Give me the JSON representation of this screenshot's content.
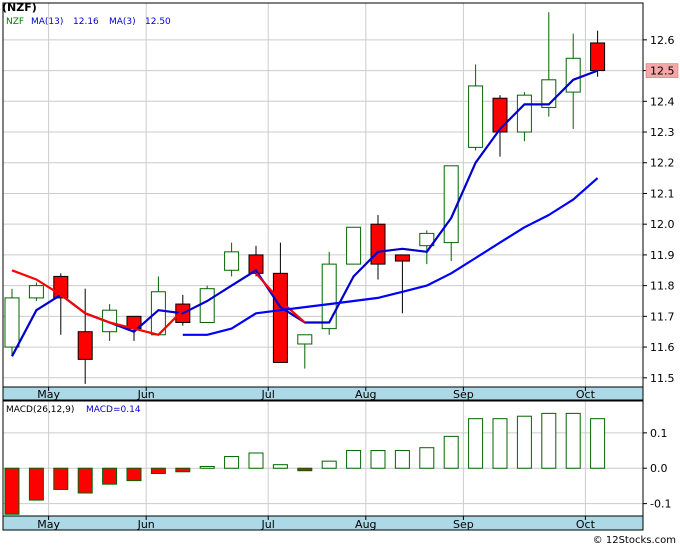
{
  "colors": {
    "background": "#ffffff",
    "frame": "#000000",
    "grid": "#cccccc",
    "axis_band": "#add8e6",
    "up_candle_border": "#006400",
    "down_candle_fill": "#ff0000",
    "ma_fast": "#0000cd",
    "ma_slow": "#ff0000",
    "ma_long": "#0000ff",
    "macd_bar_border": "#006400",
    "macd_bar_neg_fill": "#ff0000",
    "last_price_label_bg": "#f4a7a7",
    "ticker_color": "#008000",
    "label_color": "#0000cd"
  },
  "legend": {
    "ticker": "(NZF)",
    "ticker_short": "NZF",
    "ma13": "MA(13)",
    "ma13_value": "12.16",
    "ma3": "MA(3)",
    "ma3_value": "12.50"
  },
  "macd_legend": {
    "label": "MACD(26,12,9)",
    "value_label": "MACD=0.14"
  },
  "watermark": "© 12Stocks.com",
  "last_price_label": "12.5",
  "chart_data": [
    {
      "type": "candlestick",
      "title": "(NZF)",
      "x_tick_labels": [
        "May",
        "Jun",
        "Jul",
        "Aug",
        "Sep",
        "Oct"
      ],
      "x_tick_positions": [
        1.5,
        5.5,
        10.5,
        14.5,
        18.5,
        23.5
      ],
      "y_ticks": [
        11.5,
        11.6,
        11.7,
        11.8,
        11.9,
        12.0,
        12.1,
        12.2,
        12.3,
        12.4,
        12.5,
        12.6
      ],
      "y_tick_labels": [
        "11.5",
        "11.6",
        "11.7",
        "11.8",
        "11.9",
        "12.0",
        "12.1",
        "12.2",
        "12.3",
        "12.4",
        "12.5",
        "12.6"
      ],
      "ylim": [
        11.47,
        12.72
      ],
      "grid": true,
      "candles": [
        {
          "open": 11.6,
          "high": 11.79,
          "low": 11.57,
          "close": 11.76
        },
        {
          "open": 11.76,
          "high": 11.81,
          "low": 11.75,
          "close": 11.8
        },
        {
          "open": 11.83,
          "high": 11.84,
          "low": 11.64,
          "close": 11.76
        },
        {
          "open": 11.65,
          "high": 11.79,
          "low": 11.48,
          "close": 11.56
        },
        {
          "open": 11.65,
          "high": 11.74,
          "low": 11.62,
          "close": 11.72
        },
        {
          "open": 11.7,
          "high": 11.7,
          "low": 11.62,
          "close": 11.66
        },
        {
          "open": 11.64,
          "high": 11.83,
          "low": 11.64,
          "close": 11.78
        },
        {
          "open": 11.74,
          "high": 11.77,
          "low": 11.67,
          "close": 11.68
        },
        {
          "open": 11.68,
          "high": 11.8,
          "low": 11.68,
          "close": 11.79
        },
        {
          "open": 11.85,
          "high": 11.94,
          "low": 11.83,
          "close": 11.91
        },
        {
          "open": 11.9,
          "high": 11.93,
          "low": 11.83,
          "close": 11.84
        },
        {
          "open": 11.84,
          "high": 11.94,
          "low": 11.55,
          "close": 11.55
        },
        {
          "open": 11.61,
          "high": 11.64,
          "low": 11.53,
          "close": 11.64
        },
        {
          "open": 11.66,
          "high": 11.91,
          "low": 11.64,
          "close": 11.87
        },
        {
          "open": 11.87,
          "high": 11.99,
          "low": 11.87,
          "close": 11.99
        },
        {
          "open": 12.0,
          "high": 12.03,
          "low": 11.82,
          "close": 11.87
        },
        {
          "open": 11.9,
          "high": 11.9,
          "low": 11.71,
          "close": 11.88
        },
        {
          "open": 11.93,
          "high": 11.98,
          "low": 11.87,
          "close": 11.97
        },
        {
          "open": 11.94,
          "high": 12.19,
          "low": 11.88,
          "close": 12.19
        },
        {
          "open": 12.25,
          "high": 12.52,
          "low": 12.24,
          "close": 12.45
        },
        {
          "open": 12.41,
          "high": 12.42,
          "low": 12.22,
          "close": 12.3
        },
        {
          "open": 12.3,
          "high": 12.43,
          "low": 12.27,
          "close": 12.42
        },
        {
          "open": 12.38,
          "high": 12.69,
          "low": 12.35,
          "close": 12.47
        },
        {
          "open": 12.43,
          "high": 12.62,
          "low": 12.31,
          "close": 12.54
        },
        {
          "open": 12.59,
          "high": 12.63,
          "low": 12.48,
          "close": 12.5
        }
      ],
      "series": [
        {
          "name": "MA(3)",
          "color": "#0000cd",
          "values": [
            11.57,
            11.72,
            11.77,
            11.71,
            11.68,
            11.65,
            11.72,
            11.71,
            11.75,
            11.8,
            11.85,
            11.73,
            11.68,
            11.68,
            11.83,
            11.91,
            11.92,
            11.91,
            12.02,
            12.2,
            12.31,
            12.39,
            12.39,
            12.47,
            12.5
          ]
        },
        {
          "name": "",
          "color": "#ff0000",
          "values": [
            11.85,
            11.82,
            11.77,
            11.71,
            11.68,
            11.66,
            11.64,
            11.72,
            null,
            null,
            11.84,
            11.75,
            11.68
          ]
        },
        {
          "name": "MA(13)",
          "color": "#0000ff",
          "values": [
            null,
            null,
            null,
            null,
            null,
            null,
            null,
            11.64,
            11.64,
            11.66,
            11.71,
            11.72,
            11.73,
            11.74,
            11.75,
            11.76,
            11.78,
            11.8,
            11.84,
            11.89,
            11.94,
            11.99,
            12.03,
            12.08,
            12.15
          ]
        }
      ]
    },
    {
      "type": "bar",
      "title": "MACD(26,12,9)",
      "x_tick_labels": [
        "May",
        "Jun",
        "Jul",
        "Aug",
        "Sep",
        "Oct"
      ],
      "x_tick_positions": [
        1.5,
        5.5,
        10.5,
        14.5,
        18.5,
        23.5
      ],
      "y_ticks": [
        0.1,
        0.0,
        -0.1
      ],
      "y_tick_labels": [
        "0.1",
        "0.0",
        "-0.1"
      ],
      "ylim": [
        -0.135,
        0.19
      ],
      "grid": true,
      "values": [
        -0.13,
        -0.09,
        -0.06,
        -0.07,
        -0.045,
        -0.035,
        -0.015,
        -0.01,
        0.005,
        0.033,
        0.043,
        0.01,
        -0.007,
        0.02,
        0.05,
        0.05,
        0.05,
        0.058,
        0.09,
        0.14,
        0.14,
        0.147,
        0.155,
        0.155,
        0.14
      ]
    }
  ]
}
